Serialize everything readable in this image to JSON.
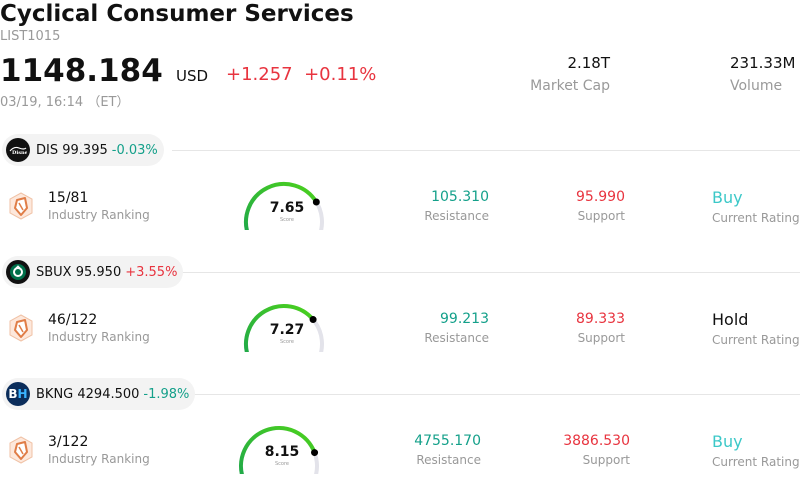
{
  "header": {
    "title": "Cyclical Consumer Services",
    "code": "LIST1015",
    "price": "1148.184",
    "currency": "USD",
    "change": "+1.257",
    "change_pct": "+0.11%",
    "timestamp": "03/19, 16:14 （ET）",
    "market_cap": {
      "value": "2.18T",
      "label": "Market Cap"
    },
    "volume": {
      "value": "231.33M",
      "label": "Volume"
    }
  },
  "stocks": [
    {
      "ticker": "DIS",
      "price": "99.395",
      "change": "-0.03%",
      "direction": "down",
      "logo_icon": "disney-logo",
      "ranking": "15/81",
      "ranking_label": "Industry Ranking",
      "score": "7.65",
      "score_label": "Score",
      "score_level": 0.765,
      "resistance": "105.310",
      "resistance_label": "Resistance",
      "support": "95.990",
      "support_label": "Support",
      "rating": "Buy",
      "rating_label": "Current Rating"
    },
    {
      "ticker": "SBUX",
      "price": "95.950",
      "change": "+3.55%",
      "direction": "up",
      "logo_icon": "starbucks-logo",
      "ranking": "46/122",
      "ranking_label": "Industry Ranking",
      "score": "7.27",
      "score_label": "Score",
      "score_level": 0.727,
      "resistance": "99.213",
      "resistance_label": "Resistance",
      "support": "89.333",
      "support_label": "Support",
      "rating": "Hold",
      "rating_label": "Current Rating"
    },
    {
      "ticker": "BKNG",
      "price": "4294.500",
      "change": "-1.98%",
      "direction": "down",
      "logo_icon": "booking-logo",
      "ranking": "3/122",
      "ranking_label": "Industry Ranking",
      "score": "8.15",
      "score_label": "Score",
      "score_level": 0.815,
      "resistance": "4755.170",
      "resistance_label": "Resistance",
      "support": "3886.530",
      "support_label": "Support",
      "rating": "Buy",
      "rating_label": "Current Rating"
    }
  ],
  "colors": {
    "up": "#e8343f",
    "down": "#14a08a",
    "buy": "#3cc8c8",
    "gauge_track": "#e3e3ea"
  }
}
